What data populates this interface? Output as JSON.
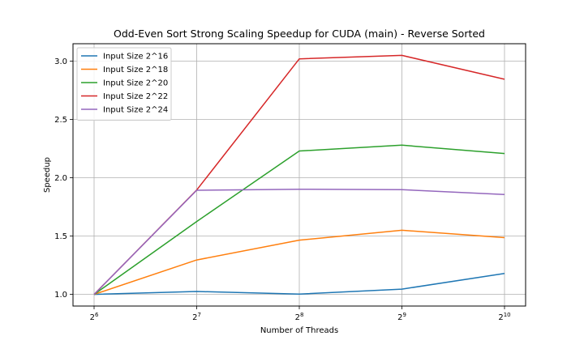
{
  "chart_data": {
    "type": "line",
    "title": "Odd-Even Sort Strong Scaling Speedup for CUDA (main) - Reverse Sorted",
    "xlabel": "Number of Threads",
    "ylabel": "Speedup",
    "x": [
      64,
      128,
      256,
      512,
      1024
    ],
    "x_scale": "log2",
    "x_tick_labels": [
      {
        "base": "2",
        "exp": "6"
      },
      {
        "base": "2",
        "exp": "7"
      },
      {
        "base": "2",
        "exp": "8"
      },
      {
        "base": "2",
        "exp": "9"
      },
      {
        "base": "2",
        "exp": "10"
      }
    ],
    "y_ticks": [
      "1.0",
      "1.5",
      "2.0",
      "2.5",
      "3.0"
    ],
    "ylim": [
      0.9,
      3.15
    ],
    "grid": true,
    "legend_position": "top-left",
    "series": [
      {
        "name": "Input Size 2^16",
        "color": "#1f77b4",
        "values": [
          1.0,
          1.025,
          1.003,
          1.045,
          1.18
        ]
      },
      {
        "name": "Input Size 2^18",
        "color": "#ff7f0e",
        "values": [
          1.0,
          1.295,
          1.465,
          1.55,
          1.487
        ]
      },
      {
        "name": "Input Size 2^20",
        "color": "#2ca02c",
        "values": [
          1.0,
          1.625,
          2.23,
          2.28,
          2.208
        ]
      },
      {
        "name": "Input Size 2^22",
        "color": "#d62728",
        "values": [
          1.0,
          1.895,
          3.02,
          3.05,
          2.845
        ]
      },
      {
        "name": "Input Size 2^24",
        "color": "#9467bd",
        "values": [
          1.0,
          1.893,
          1.902,
          1.898,
          1.857
        ]
      }
    ]
  }
}
